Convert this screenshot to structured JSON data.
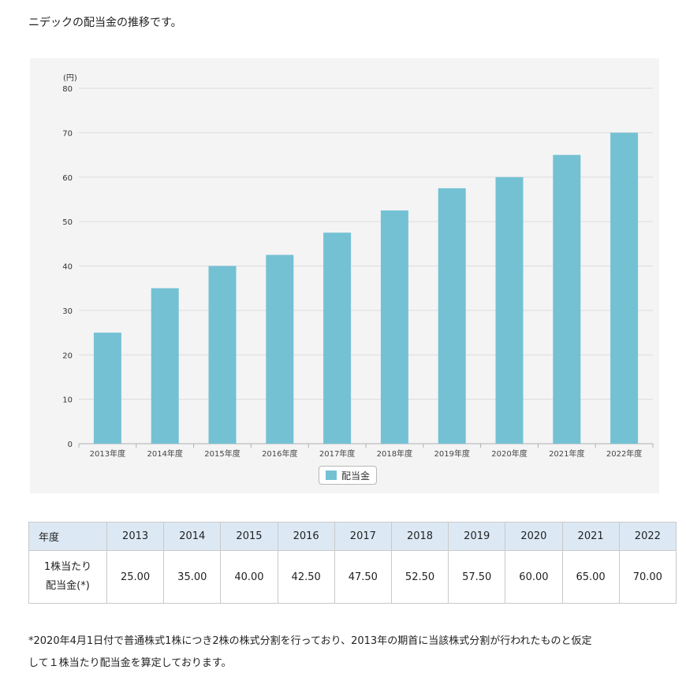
{
  "intro_text": "ニデックの配当金の推移です。",
  "colors": {
    "bar": "#74c1d4",
    "grid": "#dcdcdc",
    "panel": "#f4f4f4",
    "table_header": "#dce9f5"
  },
  "chart_data": {
    "type": "bar",
    "unit_label": "(円)",
    "categories": [
      "2013年度",
      "2014年度",
      "2015年度",
      "2016年度",
      "2017年度",
      "2018年度",
      "2019年度",
      "2020年度",
      "2021年度",
      "2022年度"
    ],
    "series": [
      {
        "name": "配当金",
        "values": [
          25,
          35,
          40,
          42.5,
          47.5,
          52.5,
          57.5,
          60,
          65,
          70
        ]
      }
    ],
    "ylim": [
      0,
      80
    ],
    "yticks": [
      0,
      10,
      20,
      30,
      40,
      50,
      60,
      70,
      80
    ],
    "grid": true,
    "legend_position": "bottom-center"
  },
  "table": {
    "header_label": "年度",
    "years": [
      "2013",
      "2014",
      "2015",
      "2016",
      "2017",
      "2018",
      "2019",
      "2020",
      "2021",
      "2022"
    ],
    "row_label_line1": "1株当たり",
    "row_label_line2": "配当金(*)",
    "values": [
      "25.00",
      "35.00",
      "40.00",
      "42.50",
      "47.50",
      "52.50",
      "57.50",
      "60.00",
      "65.00",
      "70.00"
    ]
  },
  "note_line1": "*2020年4月1日付で普通株式1株につき2株の株式分割を行っており、2013年の期首に当該株式分割が行われたものと仮定",
  "note_line2": "して１株当たり配当金を算定しております。"
}
